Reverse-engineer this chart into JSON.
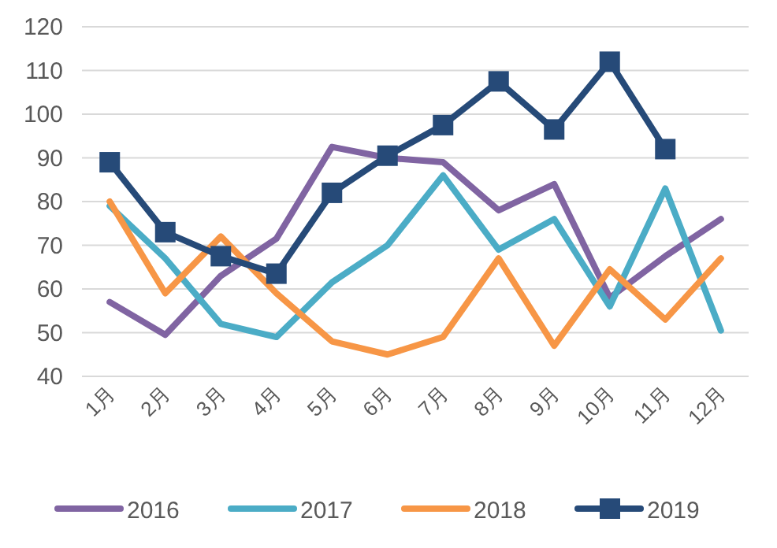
{
  "chart_data": {
    "type": "line",
    "categories": [
      "1月",
      "2月",
      "3月",
      "4月",
      "5月",
      "6月",
      "7月",
      "8月",
      "9月",
      "10月",
      "11月",
      "12月"
    ],
    "series": [
      {
        "name": "2016",
        "color": "#8064a2",
        "values": [
          57,
          49.5,
          63,
          71.5,
          92.5,
          90,
          89,
          78,
          84,
          58,
          67.5,
          76
        ]
      },
      {
        "name": "2017",
        "color": "#4bacc6",
        "values": [
          79,
          67,
          52,
          49,
          61.5,
          70,
          86,
          69,
          76,
          56,
          83,
          50.5
        ]
      },
      {
        "name": "2018",
        "color": "#f79646",
        "values": [
          80,
          59,
          72,
          59,
          48,
          45,
          49,
          67,
          47,
          64.5,
          53,
          67
        ]
      },
      {
        "name": "2019",
        "color": "#264a78",
        "marker": "square",
        "values": [
          89,
          73,
          67.5,
          63.5,
          82,
          90.5,
          97.5,
          107.5,
          96.5,
          112,
          92,
          null
        ]
      }
    ],
    "ylim": [
      40,
      120
    ],
    "yticks": [
      40,
      50,
      60,
      70,
      80,
      90,
      100,
      110,
      120
    ],
    "grid": "y",
    "legend": "bottom"
  }
}
